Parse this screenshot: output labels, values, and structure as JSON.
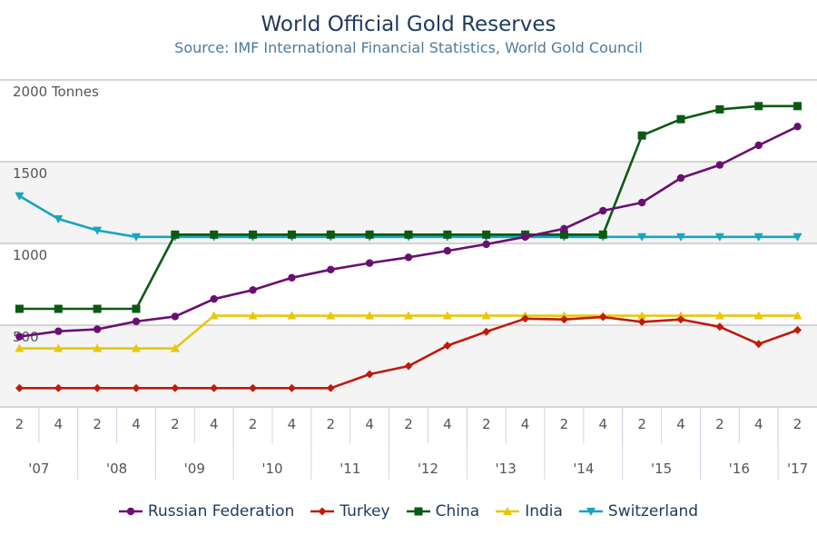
{
  "header": {
    "title": "World Official Gold Reserves",
    "subtitle": "Source: IMF International Financial Statistics, World Gold Council"
  },
  "chart_data": {
    "type": "line",
    "title": "World Official Gold Reserves",
    "subtitle": "Source: IMF International Financial Statistics, World Gold Council",
    "ylabel": "",
    "y_unit_label": "2000 Tonnes",
    "ylim": [
      0,
      2000
    ],
    "y_ticks": [
      {
        "value": 2000,
        "label": "2000 Tonnes"
      },
      {
        "value": 1500,
        "label": "1500"
      },
      {
        "value": 1000,
        "label": "1000"
      },
      {
        "value": 500,
        "label": "500"
      }
    ],
    "grid": true,
    "legend": "bottom",
    "categories": [
      "2",
      "4",
      "2",
      "4",
      "2",
      "4",
      "2",
      "4",
      "2",
      "4",
      "2",
      "4",
      "2",
      "4",
      "2",
      "4",
      "2",
      "4",
      "2",
      "4",
      "2"
    ],
    "years": [
      {
        "label": "'07",
        "start": 0,
        "end": 1
      },
      {
        "label": "'08",
        "start": 2,
        "end": 3
      },
      {
        "label": "'09",
        "start": 4,
        "end": 5
      },
      {
        "label": "'10",
        "start": 6,
        "end": 7
      },
      {
        "label": "'11",
        "start": 8,
        "end": 9
      },
      {
        "label": "'12",
        "start": 10,
        "end": 11
      },
      {
        "label": "'13",
        "start": 12,
        "end": 13
      },
      {
        "label": "'14",
        "start": 14,
        "end": 15
      },
      {
        "label": "'15",
        "start": 16,
        "end": 17
      },
      {
        "label": "'16",
        "start": 18,
        "end": 19
      },
      {
        "label": "'17",
        "start": 20,
        "end": 20
      }
    ],
    "series": [
      {
        "name": "Russian Federation",
        "color": "#6b0e72",
        "marker": "circle",
        "values": [
          430,
          463,
          475,
          523,
          553,
          660,
          715,
          790,
          840,
          880,
          915,
          955,
          995,
          1040,
          1090,
          1200,
          1250,
          1400,
          1480,
          1600,
          1715
        ]
      },
      {
        "name": "Turkey",
        "color": "#c01a0a",
        "marker": "diamond",
        "values": [
          115,
          115,
          115,
          115,
          115,
          115,
          115,
          115,
          115,
          200,
          250,
          375,
          460,
          540,
          535,
          550,
          520,
          535,
          490,
          385,
          470
        ]
      },
      {
        "name": "China",
        "color": "#0b5a12",
        "marker": "square",
        "values": [
          600,
          600,
          600,
          600,
          1054,
          1054,
          1054,
          1054,
          1054,
          1054,
          1054,
          1054,
          1054,
          1054,
          1054,
          1054,
          1660,
          1760,
          1820,
          1840,
          1840
        ]
      },
      {
        "name": "India",
        "color": "#e8c70a",
        "marker": "triangle-up",
        "values": [
          358,
          358,
          358,
          358,
          358,
          558,
          558,
          558,
          558,
          558,
          558,
          558,
          558,
          558,
          558,
          558,
          558,
          558,
          558,
          558,
          558
        ]
      },
      {
        "name": "Switzerland",
        "color": "#15a6c0",
        "marker": "triangle-down",
        "values": [
          1290,
          1150,
          1080,
          1040,
          1040,
          1040,
          1040,
          1040,
          1040,
          1040,
          1040,
          1040,
          1040,
          1040,
          1040,
          1040,
          1040,
          1040,
          1040,
          1040,
          1040
        ]
      }
    ]
  }
}
